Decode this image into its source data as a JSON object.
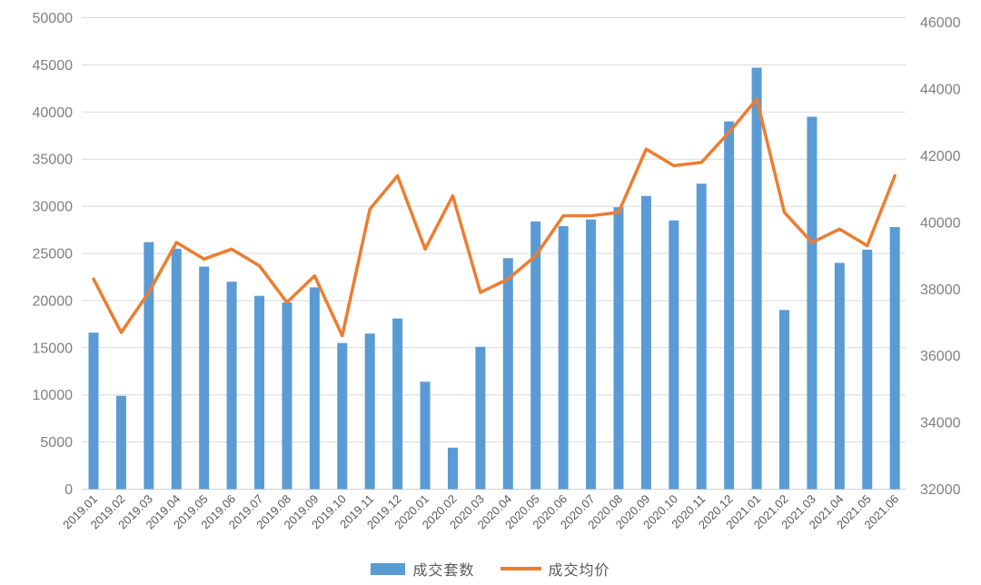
{
  "chart_data": {
    "type": "bar",
    "subtype": "combo-bar-line",
    "title": "",
    "categories": [
      "2019.01",
      "2019.02",
      "2019.03",
      "2019.04",
      "2019.05",
      "2019.06",
      "2019.07",
      "2019.08",
      "2019.09",
      "2019.10",
      "2019.11",
      "2019.12",
      "2020.01",
      "2020.02",
      "2020.03",
      "2020.04",
      "2020.05",
      "2020.06",
      "2020.07",
      "2020.08",
      "2020.09",
      "2020.10",
      "2020.11",
      "2020.12",
      "2021.01",
      "2021.02",
      "2021.03",
      "2021.04",
      "2021.05",
      "2021.06"
    ],
    "series": [
      {
        "name": "成交套数",
        "type": "bar",
        "axis": "left",
        "color": "#5B9BD5",
        "values": [
          16600,
          9900,
          26200,
          25500,
          23600,
          22000,
          20500,
          19800,
          21400,
          15500,
          16500,
          18100,
          11400,
          4400,
          15100,
          24500,
          28400,
          27900,
          28600,
          29900,
          31100,
          28500,
          32400,
          39000,
          44700,
          19000,
          39500,
          24000,
          25400,
          27800
        ]
      },
      {
        "name": "成交均价",
        "type": "line",
        "axis": "right",
        "color": "#ED7D31",
        "values": [
          38300,
          36700,
          37900,
          39400,
          38900,
          39200,
          38700,
          37600,
          38400,
          36600,
          40400,
          41400,
          39200,
          40800,
          37900,
          38300,
          39000,
          40200,
          40200,
          40300,
          42200,
          41700,
          41800,
          42700,
          43700,
          40300,
          39400,
          39800,
          39300,
          41400
        ]
      }
    ],
    "left_axis": {
      "min": 0,
      "max": 50000,
      "step": 5000,
      "tick_labels": [
        "0",
        "5000",
        "10000",
        "15000",
        "20000",
        "25000",
        "30000",
        "35000",
        "40000",
        "45000",
        "50000"
      ]
    },
    "right_axis": {
      "min": 32000,
      "max": 46000,
      "step": 2000,
      "tick_labels": [
        "32000",
        "34000",
        "36000",
        "38000",
        "40000",
        "42000",
        "44000",
        "46000"
      ]
    },
    "grid": "horizontal",
    "legend": {
      "position": "bottom",
      "items": [
        "成交套数",
        "成交均价"
      ]
    },
    "colors": {
      "bar": "#5B9BD5",
      "line": "#ED7D31",
      "gridline": "#D9D9D9",
      "axis_line": "#D0D0D0",
      "y_tick_text": "#7F7F7F",
      "x_tick_text": "#595959",
      "legend_text": "#595959"
    }
  }
}
